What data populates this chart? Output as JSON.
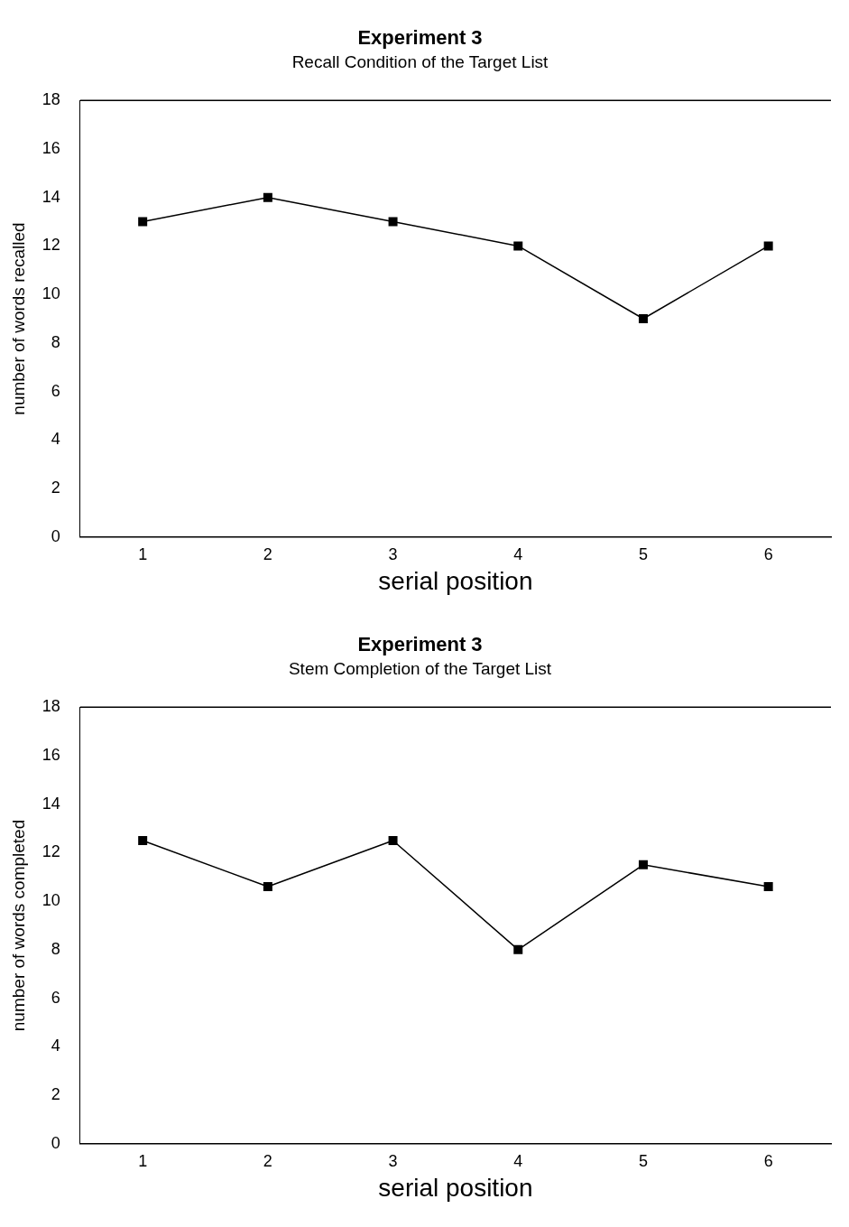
{
  "chart_data": [
    {
      "type": "line",
      "title": "Experiment 3",
      "subtitle": "Recall Condition of the Target List",
      "xlabel": "serial position",
      "ylabel": "number of words recalled",
      "categories": [
        "1",
        "2",
        "3",
        "4",
        "5",
        "6"
      ],
      "series": [
        {
          "color": "#000000",
          "values": [
            13,
            14,
            13,
            12,
            9,
            12
          ]
        }
      ],
      "ylim": [
        0,
        18
      ],
      "yticks": [
        0,
        2,
        4,
        6,
        8,
        10,
        12,
        14,
        16,
        18
      ],
      "grid": false,
      "legend": false,
      "marker": "square",
      "line_style": "solid"
    },
    {
      "type": "line",
      "title": "Experiment 3",
      "subtitle": "Stem Completion of the Target List",
      "xlabel": "serial position",
      "ylabel": "number of words completed",
      "categories": [
        "1",
        "2",
        "3",
        "4",
        "5",
        "6"
      ],
      "series": [
        {
          "color": "#000000",
          "values": [
            12.5,
            10.6,
            12.5,
            8,
            11.5,
            10.6
          ]
        }
      ],
      "ylim": [
        0,
        18
      ],
      "yticks": [
        0,
        2,
        4,
        6,
        8,
        10,
        12,
        14,
        16,
        18
      ],
      "grid": false,
      "legend": false,
      "marker": "square",
      "line_style": "solid"
    }
  ]
}
